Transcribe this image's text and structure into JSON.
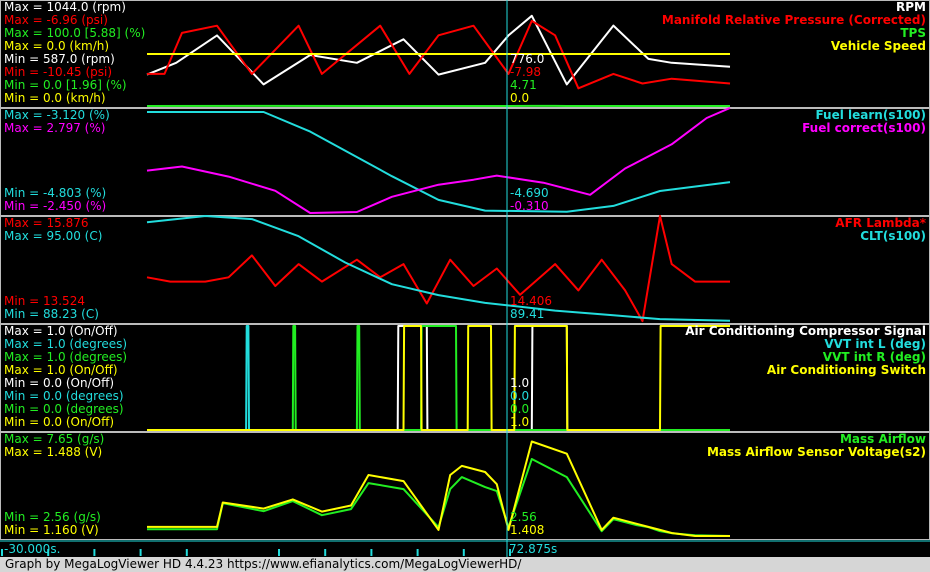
{
  "colors": {
    "white": "#ffffff",
    "red": "#ff0000",
    "green": "#22ee22",
    "yellow": "#ffff00",
    "cyan": "#22dddd",
    "magenta": "#ff00ff"
  },
  "cursor_time": "72.875s",
  "time_start": "-30.000s.",
  "footer": "Graph by MegaLogViewer HD 4.4.23 https://www.efianalytics.com/MegaLogViewerHD/",
  "panels": [
    {
      "series": [
        {
          "name": "RPM",
          "color": "white",
          "max": "Max = 1044.0 (rpm)",
          "min": "Min = 587.0 (rpm)",
          "cursor": "776.0"
        },
        {
          "name": "Manifold Relative Pressure (Corrected)",
          "color": "red",
          "max": "Max = -6.96 (psi)",
          "min": "Min = -10.45 (psi)",
          "cursor": "-7.98"
        },
        {
          "name": "TPS",
          "color": "green",
          "max": "Max = 100.0 [5.88] (%)",
          "min": "Min = 0.0 [1.96] (%)",
          "cursor": "4.71"
        },
        {
          "name": "Vehicle Speed",
          "color": "yellow",
          "max": "Max = 0.0 (km/h)",
          "min": "Min = 0.0 (km/h)",
          "cursor": "0.0"
        }
      ]
    },
    {
      "series": [
        {
          "name": "Fuel learn(s100)",
          "color": "cyan",
          "max": "Max = -3.120 (%)",
          "min": "Min = -4.803 (%)",
          "cursor": "-4.690"
        },
        {
          "name": "Fuel correct(s100)",
          "color": "magenta",
          "max": "Max = 2.797 (%)",
          "min": "Min = -2.450 (%)",
          "cursor": "-0.310"
        }
      ]
    },
    {
      "series": [
        {
          "name": "AFR Lambda*",
          "color": "red",
          "max": "Max = 15.876",
          "min": "Min = 13.524",
          "cursor": "14.406"
        },
        {
          "name": "CLT(s100)",
          "color": "cyan",
          "max": "Max = 95.00 (C)",
          "min": "Min = 88.23 (C)",
          "cursor": "89.41"
        }
      ]
    },
    {
      "series": [
        {
          "name": "Air Conditioning Compressor Signal",
          "color": "white",
          "max": "Max = 1.0 (On/Off)",
          "min": "Min = 0.0 (On/Off)",
          "cursor": "1.0"
        },
        {
          "name": "VVT int L (deg)",
          "color": "cyan",
          "max": "Max = 1.0 (degrees)",
          "min": "Min = 0.0 (degrees)",
          "cursor": "0.0"
        },
        {
          "name": "VVT int R (deg)",
          "color": "green",
          "max": "Max = 1.0 (degrees)",
          "min": "Min = 0.0 (degrees)",
          "cursor": "0.0"
        },
        {
          "name": "Air Conditioning Switch",
          "color": "yellow",
          "max": "Max = 1.0 (On/Off)",
          "min": "Min = 0.0 (On/Off)",
          "cursor": "1.0"
        }
      ]
    },
    {
      "series": [
        {
          "name": "Mass Airflow",
          "color": "green",
          "max": "Max = 7.65 (g/s)",
          "min": "Min = 2.56 (g/s)",
          "cursor": "2.56"
        },
        {
          "name": "Mass Airflow Sensor Voltage(s2)",
          "color": "yellow",
          "max": "Max = 1.488 (V)",
          "min": "Min = 1.160 (V)",
          "cursor": "1.408"
        }
      ]
    }
  ],
  "chart_data": {
    "type": "line",
    "x_unit": "s",
    "cursor_x": 72.875,
    "series": [
      {
        "name": "RPM",
        "x": [
          0,
          0.05,
          0.12,
          0.2,
          0.28,
          0.36,
          0.44,
          0.5,
          0.58,
          0.62,
          0.66,
          0.72,
          0.8,
          0.86,
          0.9,
          1
        ],
        "values": [
          700,
          760,
          900,
          650,
          800,
          760,
          880,
          700,
          760,
          900,
          1000,
          650,
          950,
          780,
          760,
          740
        ]
      },
      {
        "name": "Manifold Relative Pressure (Corrected)",
        "x": [
          0,
          0.03,
          0.06,
          0.12,
          0.18,
          0.26,
          0.3,
          0.4,
          0.45,
          0.5,
          0.56,
          0.62,
          0.66,
          0.7,
          0.74,
          0.8,
          0.85,
          0.9,
          1
        ],
        "values": [
          -9.2,
          -9.2,
          -7.5,
          -7.2,
          -9.2,
          -7.2,
          -9.2,
          -7.2,
          -9.2,
          -7.6,
          -7.2,
          -9.2,
          -7.0,
          -7.6,
          -9.8,
          -9.2,
          -9.6,
          -9.4,
          -9.6
        ]
      },
      {
        "name": "TPS",
        "x": [
          0,
          0.2,
          0.5,
          0.62,
          0.66,
          0.7,
          0.72,
          1
        ],
        "values": [
          0,
          2,
          0,
          0,
          2,
          1,
          0,
          0
        ]
      },
      {
        "name": "Vehicle Speed",
        "x": [
          0,
          1
        ],
        "values": [
          0,
          0
        ]
      },
      {
        "name": "Fuel learn(s100)",
        "x": [
          0,
          0.2,
          0.28,
          0.42,
          0.5,
          0.58,
          0.72,
          0.8,
          0.88,
          1
        ],
        "values": [
          -3.12,
          -3.12,
          -3.45,
          -4.2,
          -4.6,
          -4.78,
          -4.8,
          -4.7,
          -4.45,
          -4.3
        ]
      },
      {
        "name": "Fuel correct(s100)",
        "x": [
          0,
          0.06,
          0.14,
          0.22,
          0.28,
          0.36,
          0.42,
          0.5,
          0.56,
          0.6,
          0.68,
          0.76,
          0.82,
          0.9,
          0.96,
          1
        ],
        "values": [
          -0.3,
          -0.1,
          -0.6,
          -1.3,
          -2.4,
          -2.35,
          -1.6,
          -1.0,
          -0.75,
          -0.55,
          -0.9,
          -1.5,
          -0.2,
          1.0,
          2.3,
          2.8
        ]
      },
      {
        "name": "AFR Lambda*",
        "x": [
          0,
          0.04,
          0.1,
          0.14,
          0.18,
          0.22,
          0.26,
          0.3,
          0.36,
          0.4,
          0.44,
          0.48,
          0.52,
          0.56,
          0.6,
          0.64,
          0.7,
          0.74,
          0.78,
          0.82,
          0.85,
          0.88,
          0.9,
          0.94,
          1
        ],
        "values": [
          14.5,
          14.4,
          14.4,
          14.5,
          15.0,
          14.3,
          14.8,
          14.4,
          14.9,
          14.5,
          14.8,
          13.9,
          14.9,
          14.3,
          14.7,
          14.1,
          14.8,
          14.2,
          14.9,
          14.2,
          13.5,
          15.9,
          14.8,
          14.4,
          14.4
        ]
      },
      {
        "name": "CLT(s100)",
        "x": [
          0,
          0.1,
          0.18,
          0.26,
          0.34,
          0.42,
          0.5,
          0.58,
          0.7,
          0.8,
          0.88,
          1
        ],
        "values": [
          94.6,
          95.0,
          94.8,
          93.7,
          92.0,
          90.6,
          89.9,
          89.4,
          88.9,
          88.6,
          88.35,
          88.25
        ]
      },
      {
        "name": "Air Conditioning Compressor Signal",
        "x": [
          0,
          0.43,
          0.431,
          0.48,
          0.481,
          0.66,
          0.661,
          0.72,
          0.721,
          1
        ],
        "values": [
          0,
          0,
          1,
          1,
          0,
          0,
          1,
          1,
          0,
          0
        ]
      },
      {
        "name": "VVT int L (deg)",
        "x": [
          0,
          0.17,
          0.171,
          0.174,
          0.175,
          1
        ],
        "values": [
          0,
          0,
          1,
          1,
          0,
          0
        ]
      },
      {
        "name": "VVT int R (deg)",
        "x": [
          0,
          0.25,
          0.251,
          0.254,
          0.255,
          0.36,
          0.361,
          0.364,
          0.365,
          0.47,
          0.471,
          0.53,
          0.531,
          1
        ],
        "values": [
          0,
          0,
          1,
          1,
          0,
          0,
          1,
          1,
          0,
          0,
          1,
          1,
          0,
          0
        ]
      },
      {
        "name": "Air Conditioning Switch",
        "x": [
          0,
          0.44,
          0.441,
          0.47,
          0.471,
          0.55,
          0.551,
          0.59,
          0.591,
          0.63,
          0.631,
          0.72,
          0.721,
          0.88,
          0.881,
          1
        ],
        "values": [
          0,
          0,
          1,
          1,
          0,
          0,
          1,
          1,
          0,
          0,
          1,
          1,
          0,
          0,
          1,
          1
        ]
      },
      {
        "name": "Mass Airflow",
        "x": [
          0,
          0.12,
          0.13,
          0.2,
          0.25,
          0.3,
          0.35,
          0.38,
          0.44,
          0.5,
          0.52,
          0.54,
          0.58,
          0.6,
          0.62,
          0.66,
          0.72,
          0.78,
          0.8,
          0.84,
          0.86,
          0.88,
          0.9,
          0.94,
          1
        ],
        "values": [
          2.9,
          2.9,
          4.2,
          3.8,
          4.3,
          3.6,
          3.9,
          5.2,
          4.9,
          3.0,
          4.9,
          5.5,
          5.0,
          4.8,
          3.0,
          6.4,
          5.5,
          2.8,
          3.4,
          3.1,
          3.0,
          2.8,
          2.7,
          2.6,
          2.56
        ]
      },
      {
        "name": "Mass Airflow Sensor Voltage(s2)",
        "x": [
          0,
          0.12,
          0.13,
          0.2,
          0.25,
          0.3,
          0.35,
          0.38,
          0.44,
          0.5,
          0.52,
          0.54,
          0.58,
          0.6,
          0.62,
          0.66,
          0.72,
          0.78,
          0.8,
          0.84,
          0.86,
          0.88,
          0.9,
          0.94,
          1
        ],
        "values": [
          1.19,
          1.19,
          1.27,
          1.25,
          1.28,
          1.24,
          1.26,
          1.36,
          1.34,
          1.18,
          1.36,
          1.39,
          1.37,
          1.33,
          1.18,
          1.47,
          1.43,
          1.18,
          1.22,
          1.2,
          1.19,
          1.18,
          1.17,
          1.16,
          1.16
        ]
      }
    ]
  }
}
